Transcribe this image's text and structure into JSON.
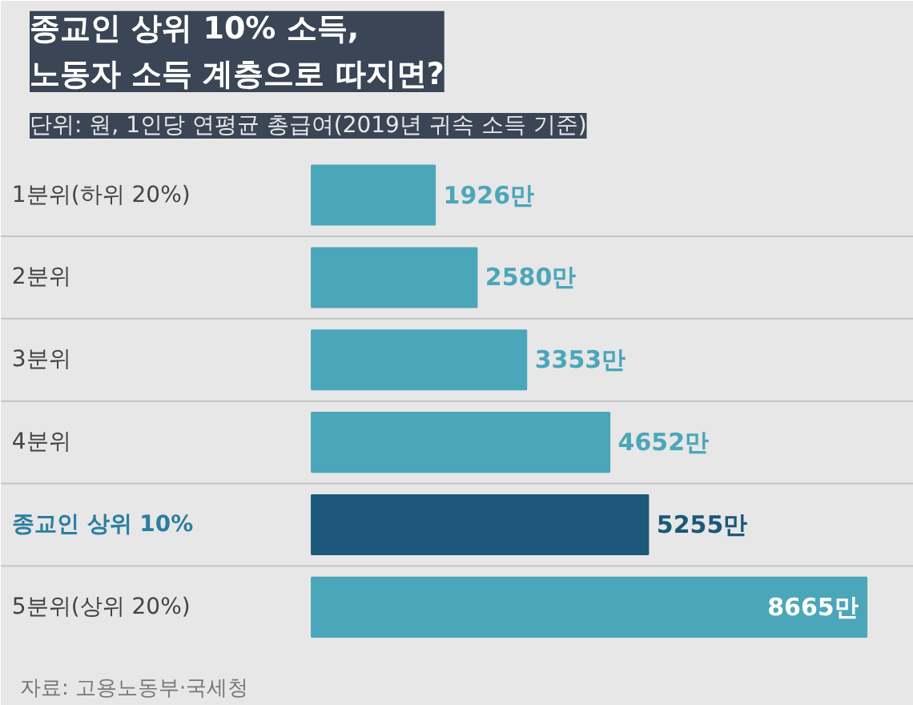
{
  "chart_data": {
    "type": "bar",
    "orientation": "horizontal",
    "title": "종교인 상위 10% 소득,\n노동자 소득 계층으로 따지면?",
    "subtitle": "단위: 원, 1인당 연평균 총급여(2019년 귀속 소득 기준)",
    "categories": [
      "1분위(하위 20%)",
      "2분위",
      "3분위",
      "4분위",
      "종교인 상위 10%",
      "5분위(상위 20%)"
    ],
    "values": [
      1926,
      2580,
      3353,
      4652,
      5255,
      8665
    ],
    "value_labels": [
      "1926만",
      "2580만",
      "3353만",
      "4652만",
      "5255만",
      "8665만"
    ],
    "colors": [
      "#4ba6ba",
      "#4ba6ba",
      "#4ba6ba",
      "#4ba6ba",
      "#1b5879",
      "#4ba6ba"
    ],
    "annotations": [
      "자료: 고용노동부·국세청"
    ]
  }
}
